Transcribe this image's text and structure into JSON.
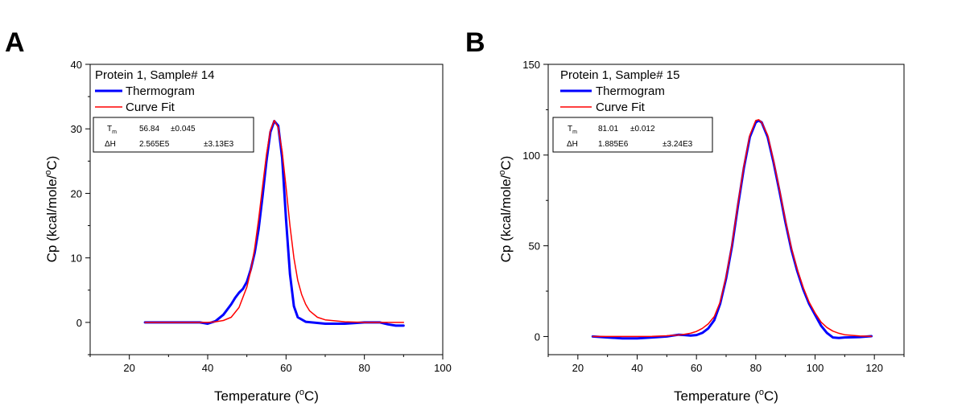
{
  "chart_data": [
    {
      "panel": "A",
      "type": "line",
      "title": "",
      "xlabel": "Temperature (",
      "xlabel_unit": "o",
      "xlabel_end": "C)",
      "ylabel": "Cp (kcal/mole/",
      "ylabel_unit": "o",
      "ylabel_end": "C)",
      "xlim": [
        10,
        100
      ],
      "ylim": [
        -5,
        40
      ],
      "xticks": [
        20,
        40,
        60,
        80,
        100
      ],
      "yticks": [
        0,
        10,
        20,
        30,
        40
      ],
      "legend": {
        "title": "Protein 1, Sample# 14",
        "entries": [
          {
            "label": "Thermogram",
            "color": "#0000ff"
          },
          {
            "label": "Curve Fit",
            "color": "#ff0000"
          }
        ],
        "params": [
          {
            "name": "T",
            "sub": "m",
            "value": "56.84",
            "error": "±0.045"
          },
          {
            "name": "ΔH",
            "sub": "",
            "value": "2.565E5",
            "error": "±3.13E3"
          }
        ]
      },
      "series": [
        {
          "name": "Thermogram",
          "color": "#0000ff",
          "width": 3,
          "x": [
            24,
            30,
            35,
            38,
            40,
            42,
            44,
            46,
            47,
            48,
            49,
            50,
            51,
            52,
            53,
            54,
            55,
            56,
            57,
            58,
            59,
            60,
            61,
            62,
            63,
            65,
            70,
            75,
            80,
            84,
            86,
            88,
            90
          ],
          "y": [
            0,
            0,
            0,
            0,
            -0.2,
            0.2,
            1.2,
            2.8,
            3.8,
            4.6,
            5.2,
            6.3,
            8.2,
            10.8,
            14.5,
            19.5,
            25.0,
            29.5,
            31.2,
            30.5,
            25.5,
            16.0,
            7.5,
            2.5,
            0.8,
            0.1,
            -0.2,
            -0.2,
            0,
            0,
            -0.3,
            -0.5,
            -0.5
          ]
        },
        {
          "name": "Curve Fit",
          "color": "#ff0000",
          "width": 1.5,
          "x": [
            24,
            30,
            35,
            40,
            42,
            44,
            46,
            48,
            50,
            51,
            52,
            53,
            54,
            55,
            56,
            57,
            58,
            59,
            60,
            61,
            62,
            63,
            64,
            65,
            66,
            68,
            70,
            75,
            80,
            85,
            90
          ],
          "y": [
            0,
            0,
            0,
            0,
            0.1,
            0.3,
            0.8,
            2.3,
            5.5,
            8.0,
            11.5,
            16.0,
            21.0,
            26.0,
            29.8,
            31.3,
            30.2,
            26.5,
            21.0,
            15.0,
            10.0,
            6.5,
            4.3,
            2.8,
            1.8,
            0.8,
            0.4,
            0.1,
            0,
            0,
            0
          ]
        }
      ]
    },
    {
      "panel": "B",
      "type": "line",
      "title": "",
      "xlabel": "Temperature (",
      "xlabel_unit": "o",
      "xlabel_end": "C)",
      "ylabel": "Cp (kcal/mole/",
      "ylabel_unit": "o",
      "ylabel_end": "C)",
      "xlim": [
        10,
        130
      ],
      "ylim": [
        -10,
        150
      ],
      "xticks": [
        20,
        40,
        60,
        80,
        100,
        120
      ],
      "yticks": [
        0,
        50,
        100,
        150
      ],
      "legend": {
        "title": "Protein 1, Sample# 15",
        "entries": [
          {
            "label": "Thermogram",
            "color": "#0000ff"
          },
          {
            "label": "Curve Fit",
            "color": "#ff0000"
          }
        ],
        "params": [
          {
            "name": "T",
            "sub": "m",
            "value": "81.01",
            "error": "±0.012"
          },
          {
            "name": "ΔH",
            "sub": "",
            "value": "1.885E6",
            "error": "±3.24E3"
          }
        ]
      },
      "series": [
        {
          "name": "Thermogram",
          "color": "#0000ff",
          "width": 3,
          "x": [
            25,
            30,
            35,
            40,
            45,
            50,
            52,
            54,
            56,
            58,
            60,
            62,
            64,
            66,
            68,
            70,
            72,
            74,
            76,
            78,
            80,
            81,
            82,
            84,
            86,
            88,
            90,
            92,
            94,
            96,
            98,
            100,
            102,
            104,
            106,
            108,
            110,
            115,
            119
          ],
          "y": [
            0,
            -0.5,
            -1,
            -1,
            -0.5,
            0,
            0.5,
            1.0,
            0.8,
            0.5,
            0.8,
            2.0,
            4.5,
            9.0,
            18,
            32,
            50,
            72,
            93,
            110,
            118,
            119,
            118,
            110,
            96,
            80,
            63,
            48,
            36,
            26,
            18,
            12,
            6,
            2,
            -0.5,
            -0.8,
            -0.5,
            -0.3,
            0.2
          ]
        },
        {
          "name": "Curve Fit",
          "color": "#ff0000",
          "width": 1.5,
          "x": [
            25,
            30,
            35,
            40,
            45,
            50,
            55,
            58,
            60,
            62,
            64,
            66,
            68,
            70,
            72,
            74,
            76,
            78,
            80,
            81,
            82,
            84,
            86,
            88,
            90,
            92,
            94,
            96,
            98,
            100,
            102,
            104,
            106,
            108,
            110,
            115,
            119
          ],
          "y": [
            0,
            0,
            0,
            0,
            0.1,
            0.4,
            1.0,
            1.8,
            2.8,
            4.5,
            7.0,
            11,
            19,
            33,
            51,
            73,
            94,
            111,
            119,
            119.5,
            118,
            111,
            97,
            81,
            64,
            49,
            37,
            27,
            19,
            13,
            8,
            5,
            3,
            1.8,
            1.0,
            0.3,
            0.1
          ]
        }
      ]
    }
  ]
}
